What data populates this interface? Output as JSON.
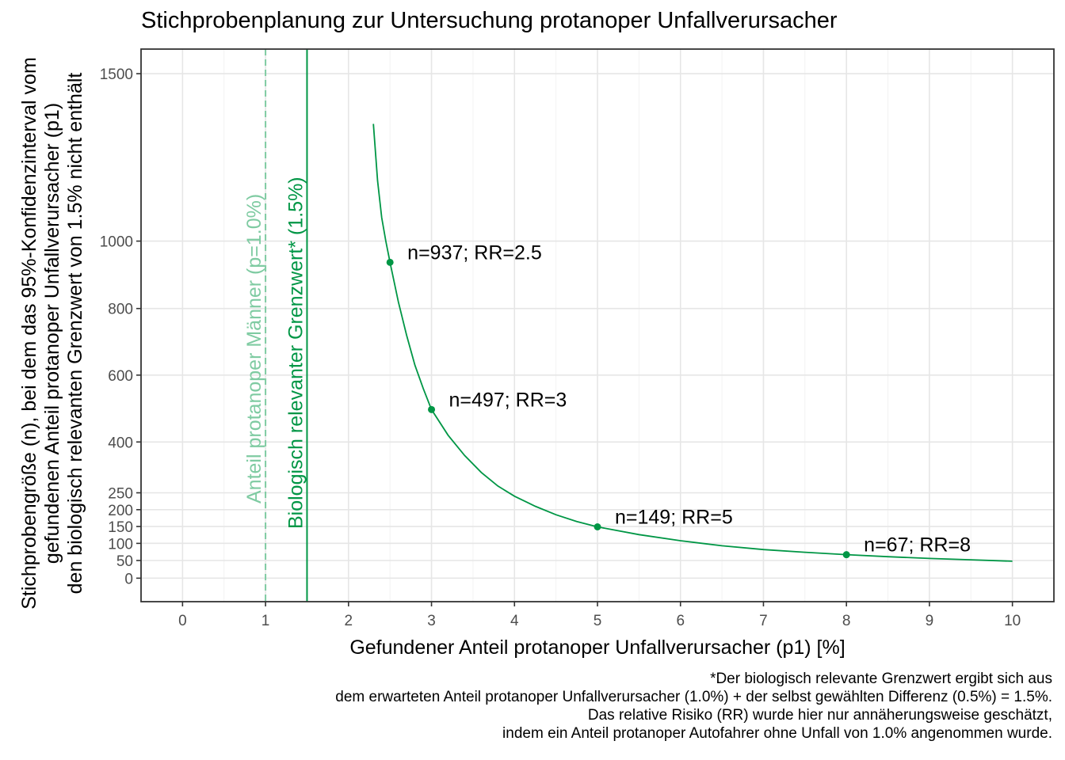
{
  "chart_data": {
    "type": "line",
    "title": "Stichprobenplanung zur Untersuchung protanoper Unfallverursacher",
    "xlabel": "Gefundener Anteil protanoper Unfallverursacher (p1) [%]",
    "ylabel_lines": [
      "Stichprobengröße (n), bei dem das 95%-Konfidenzinterval vom",
      "gefundenen Anteil protanoper Unfallverursacher (p1)",
      "den biologisch relevanten Grenzwert von 1.5% nicht enthält"
    ],
    "xlim": [
      -0.5,
      10.5
    ],
    "ylim": [
      -70,
      1600
    ],
    "x_ticks": [
      0,
      1,
      2,
      3,
      4,
      5,
      6,
      7,
      8,
      9,
      10
    ],
    "x_tick_labels": [
      "0",
      "1",
      "2",
      "3",
      "4",
      "5",
      "6",
      "7",
      "8",
      "9",
      "10"
    ],
    "y_ticks": [
      0,
      50,
      100,
      150,
      200,
      250,
      400,
      600,
      800,
      1000,
      1500
    ],
    "y_tick_labels": [
      "0",
      "50",
      "100",
      "150",
      "200",
      "250",
      "400",
      "600",
      "800",
      "1000",
      "1500"
    ],
    "grid": true,
    "curve_color": "#009645",
    "curve": {
      "x": [
        2.3,
        2.35,
        2.4,
        2.45,
        2.5,
        2.6,
        2.7,
        2.8,
        2.9,
        3.0,
        3.2,
        3.4,
        3.6,
        3.8,
        4.0,
        4.25,
        4.5,
        4.75,
        5.0,
        5.5,
        6.0,
        6.5,
        7.0,
        7.5,
        8.0,
        8.5,
        9.0,
        9.5,
        10.0
      ],
      "y": [
        1350,
        1180,
        1070,
        1000,
        937,
        820,
        720,
        630,
        560,
        497,
        420,
        360,
        310,
        270,
        240,
        210,
        185,
        165,
        149,
        126,
        108,
        93,
        82,
        74,
        67,
        61,
        56,
        52,
        48
      ]
    },
    "points": [
      {
        "x": 2.5,
        "y": 937,
        "label": "n=937; RR=2.5"
      },
      {
        "x": 3.0,
        "y": 497,
        "label": "n=497; RR=3"
      },
      {
        "x": 5.0,
        "y": 149,
        "label": "n=149; RR=5"
      },
      {
        "x": 8.0,
        "y": 67,
        "label": "n=67; RR=8"
      }
    ],
    "vlines": [
      {
        "x": 1.0,
        "style": "dashed",
        "color": "#7fcba2",
        "label": "Anteil protanoper Männer (p=1.0%)"
      },
      {
        "x": 1.5,
        "style": "solid",
        "color": "#009645",
        "label": "Biologisch relevanter Grenzwert* (1.5%)"
      }
    ],
    "caption_lines": [
      "*Der biologisch relevante Grenzwert ergibt sich aus",
      "dem erwarteten Anteil protanoper Unfallverursacher (1.0%) + der selbst gewählten Differenz (0.5%) = 1.5%.",
      "Das relative Risiko (RR) wurde hier nur annäherungsweise geschätzt,",
      "indem ein Anteil protanoper Autofahrer ohne Unfall von 1.0% angenommen wurde."
    ]
  }
}
